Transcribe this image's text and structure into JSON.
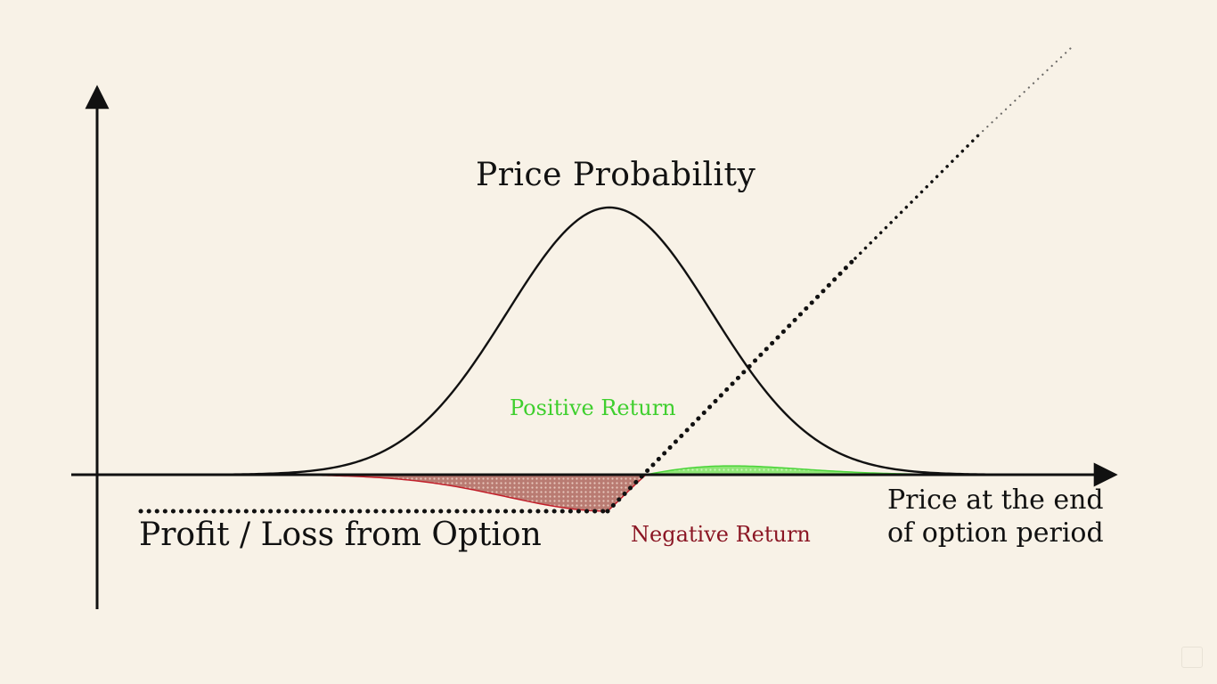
{
  "labels": {
    "price_probability": "Price Probability",
    "positive_return": "Positive Return",
    "negative_return": "Negative Return",
    "profit_loss": "Profit / Loss from Option",
    "x_axis_line1": "Price at the end",
    "x_axis_line2": "of option period"
  },
  "colors": {
    "background": "#f8f2e7",
    "ink": "#111111",
    "positive": "#3fcf2e",
    "positive_fill": "#a6ee8c",
    "negative": "#8b1624",
    "negative_fill": "#b0756d"
  }
}
